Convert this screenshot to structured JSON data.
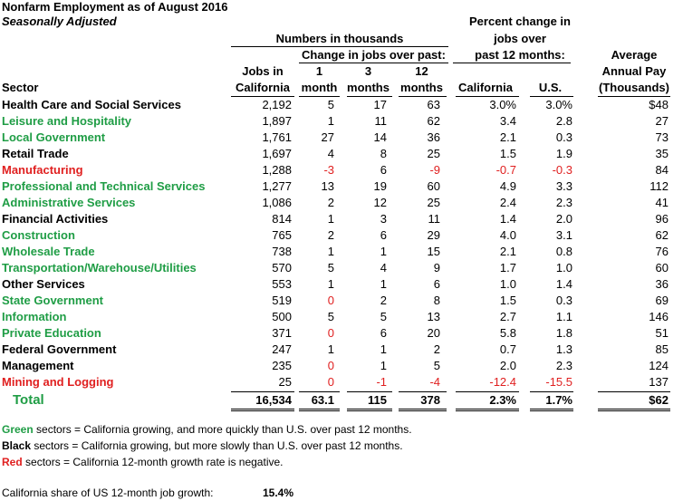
{
  "title": "Nonfarm Employment as of August 2016",
  "subtitle": "Seasonally Adjusted",
  "header": {
    "group_numbers": "Numbers in thousands",
    "group_change": "Change in jobs over past:",
    "group_percent": [
      "Percent change in",
      "jobs over",
      "past 12 months:"
    ],
    "columns": [
      [
        "Sector"
      ],
      [
        "Jobs in",
        "California"
      ],
      [
        "1",
        "month"
      ],
      [
        "3",
        "months"
      ],
      [
        "12",
        "months"
      ],
      [
        "California"
      ],
      [
        "U.S."
      ],
      [
        "Average",
        "Annual Pay",
        "(Thousands)"
      ]
    ]
  },
  "table": {
    "rows": [
      {
        "sector": "Health Care and Social Services",
        "color": "black",
        "cells": [
          "2,192",
          "5",
          "17",
          "63",
          "3.0%",
          "3.0%",
          "$48"
        ]
      },
      {
        "sector": "Leisure and Hospitality",
        "color": "green",
        "cells": [
          "1,897",
          "1",
          "11",
          "62",
          "3.4",
          "2.8",
          "27"
        ]
      },
      {
        "sector": "Local Government",
        "color": "green",
        "cells": [
          "1,761",
          "27",
          "14",
          "36",
          "2.1",
          "0.3",
          "73"
        ]
      },
      {
        "sector": "Retail Trade",
        "color": "black",
        "cells": [
          "1,697",
          "4",
          "8",
          "25",
          "1.5",
          "1.9",
          "35"
        ]
      },
      {
        "sector": "Manufacturing",
        "color": "red",
        "cells": [
          "1,288",
          "-3",
          "6",
          "-9",
          "-0.7",
          "-0.3",
          "84"
        ]
      },
      {
        "sector": "Professional and Technical Services",
        "color": "green",
        "cells": [
          "1,277",
          "13",
          "19",
          "60",
          "4.9",
          "3.3",
          "112"
        ]
      },
      {
        "sector": "Administrative Services",
        "color": "green",
        "cells": [
          "1,086",
          "2",
          "12",
          "25",
          "2.4",
          "2.3",
          "41"
        ]
      },
      {
        "sector": "Financial Activities",
        "color": "black",
        "cells": [
          "814",
          "1",
          "3",
          "11",
          "1.4",
          "2.0",
          "96"
        ]
      },
      {
        "sector": "Construction",
        "color": "green",
        "cells": [
          "765",
          "2",
          "6",
          "29",
          "4.0",
          "3.1",
          "62"
        ]
      },
      {
        "sector": "Wholesale Trade",
        "color": "green",
        "cells": [
          "738",
          "1",
          "1",
          "15",
          "2.1",
          "0.8",
          "76"
        ]
      },
      {
        "sector": "Transportation/Warehouse/Utilities",
        "color": "green",
        "cells": [
          "570",
          "5",
          "4",
          "9",
          "1.7",
          "1.0",
          "60"
        ]
      },
      {
        "sector": "Other Services",
        "color": "black",
        "cells": [
          "553",
          "1",
          "1",
          "6",
          "1.0",
          "1.4",
          "36"
        ]
      },
      {
        "sector": "State Government",
        "color": "green",
        "cells": [
          "519",
          "0",
          "2",
          "8",
          "1.5",
          "0.3",
          "69"
        ]
      },
      {
        "sector": "Information",
        "color": "green",
        "cells": [
          "500",
          "5",
          "5",
          "13",
          "2.7",
          "1.1",
          "146"
        ]
      },
      {
        "sector": "Private Education",
        "color": "green",
        "cells": [
          "371",
          "0",
          "6",
          "20",
          "5.8",
          "1.8",
          "51"
        ]
      },
      {
        "sector": "Federal Government",
        "color": "black",
        "cells": [
          "247",
          "1",
          "1",
          "2",
          "0.7",
          "1.3",
          "85"
        ]
      },
      {
        "sector": "Management",
        "color": "black",
        "cells": [
          "235",
          "0",
          "1",
          "5",
          "2.0",
          "2.3",
          "124"
        ]
      },
      {
        "sector": "Mining and Logging",
        "color": "red",
        "cells": [
          "25",
          "0",
          "-1",
          "-4",
          "-12.4",
          "-15.5",
          "137"
        ]
      }
    ],
    "total": {
      "sector": "Total",
      "color": "green",
      "cells": [
        "16,534",
        "63.1",
        "115",
        "378",
        "2.3%",
        "1.7%",
        "$62"
      ]
    }
  },
  "legend": [
    {
      "term": "Green",
      "color": "green",
      "text": "sectors = California growing, and more quickly than U.S. over past 12 months."
    },
    {
      "term": "Black",
      "color": "black",
      "text": "sectors = California growing, but more slowly than U.S. over past 12 months."
    },
    {
      "term": "Red",
      "color": "red",
      "text": "sectors = California 12-month growth rate is negative."
    }
  ],
  "share": {
    "label": "California share of US 12-month job growth:",
    "value": "15.4%"
  }
}
